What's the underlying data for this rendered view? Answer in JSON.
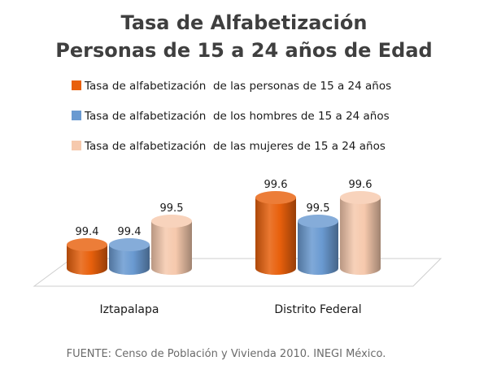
{
  "chart_data": {
    "type": "bar",
    "title_lines": [
      "Tasa de Alfabetización",
      "Personas de 15 a 24 años de Edad"
    ],
    "categories": [
      "Iztapalapa",
      "Distrito Federal"
    ],
    "series": [
      {
        "name": "Tasa de alfabetización  de las personas de 15 a 24 años",
        "values": [
          99.4,
          99.6
        ],
        "value_labels": [
          "99.4",
          "99.6"
        ],
        "color": "#e8600c"
      },
      {
        "name": "Tasa de alfabetización  de los hombres de 15 a 24 años",
        "values": [
          99.4,
          99.5
        ],
        "value_labels": [
          "99.4",
          "99.5"
        ],
        "color": "#6a9ad1"
      },
      {
        "name": "Tasa de alfabetización  de las mujeres de 15 a 24 años",
        "values": [
          99.5,
          99.6
        ],
        "value_labels": [
          "99.5",
          "99.6"
        ],
        "color": "#f6c9ad"
      }
    ],
    "style_3d": "cylinder",
    "legend_position": "top",
    "grid": false,
    "axis_visible": false
  },
  "source": "FUENTE: Censo de Población y Vivienda 2010. INEGI México."
}
